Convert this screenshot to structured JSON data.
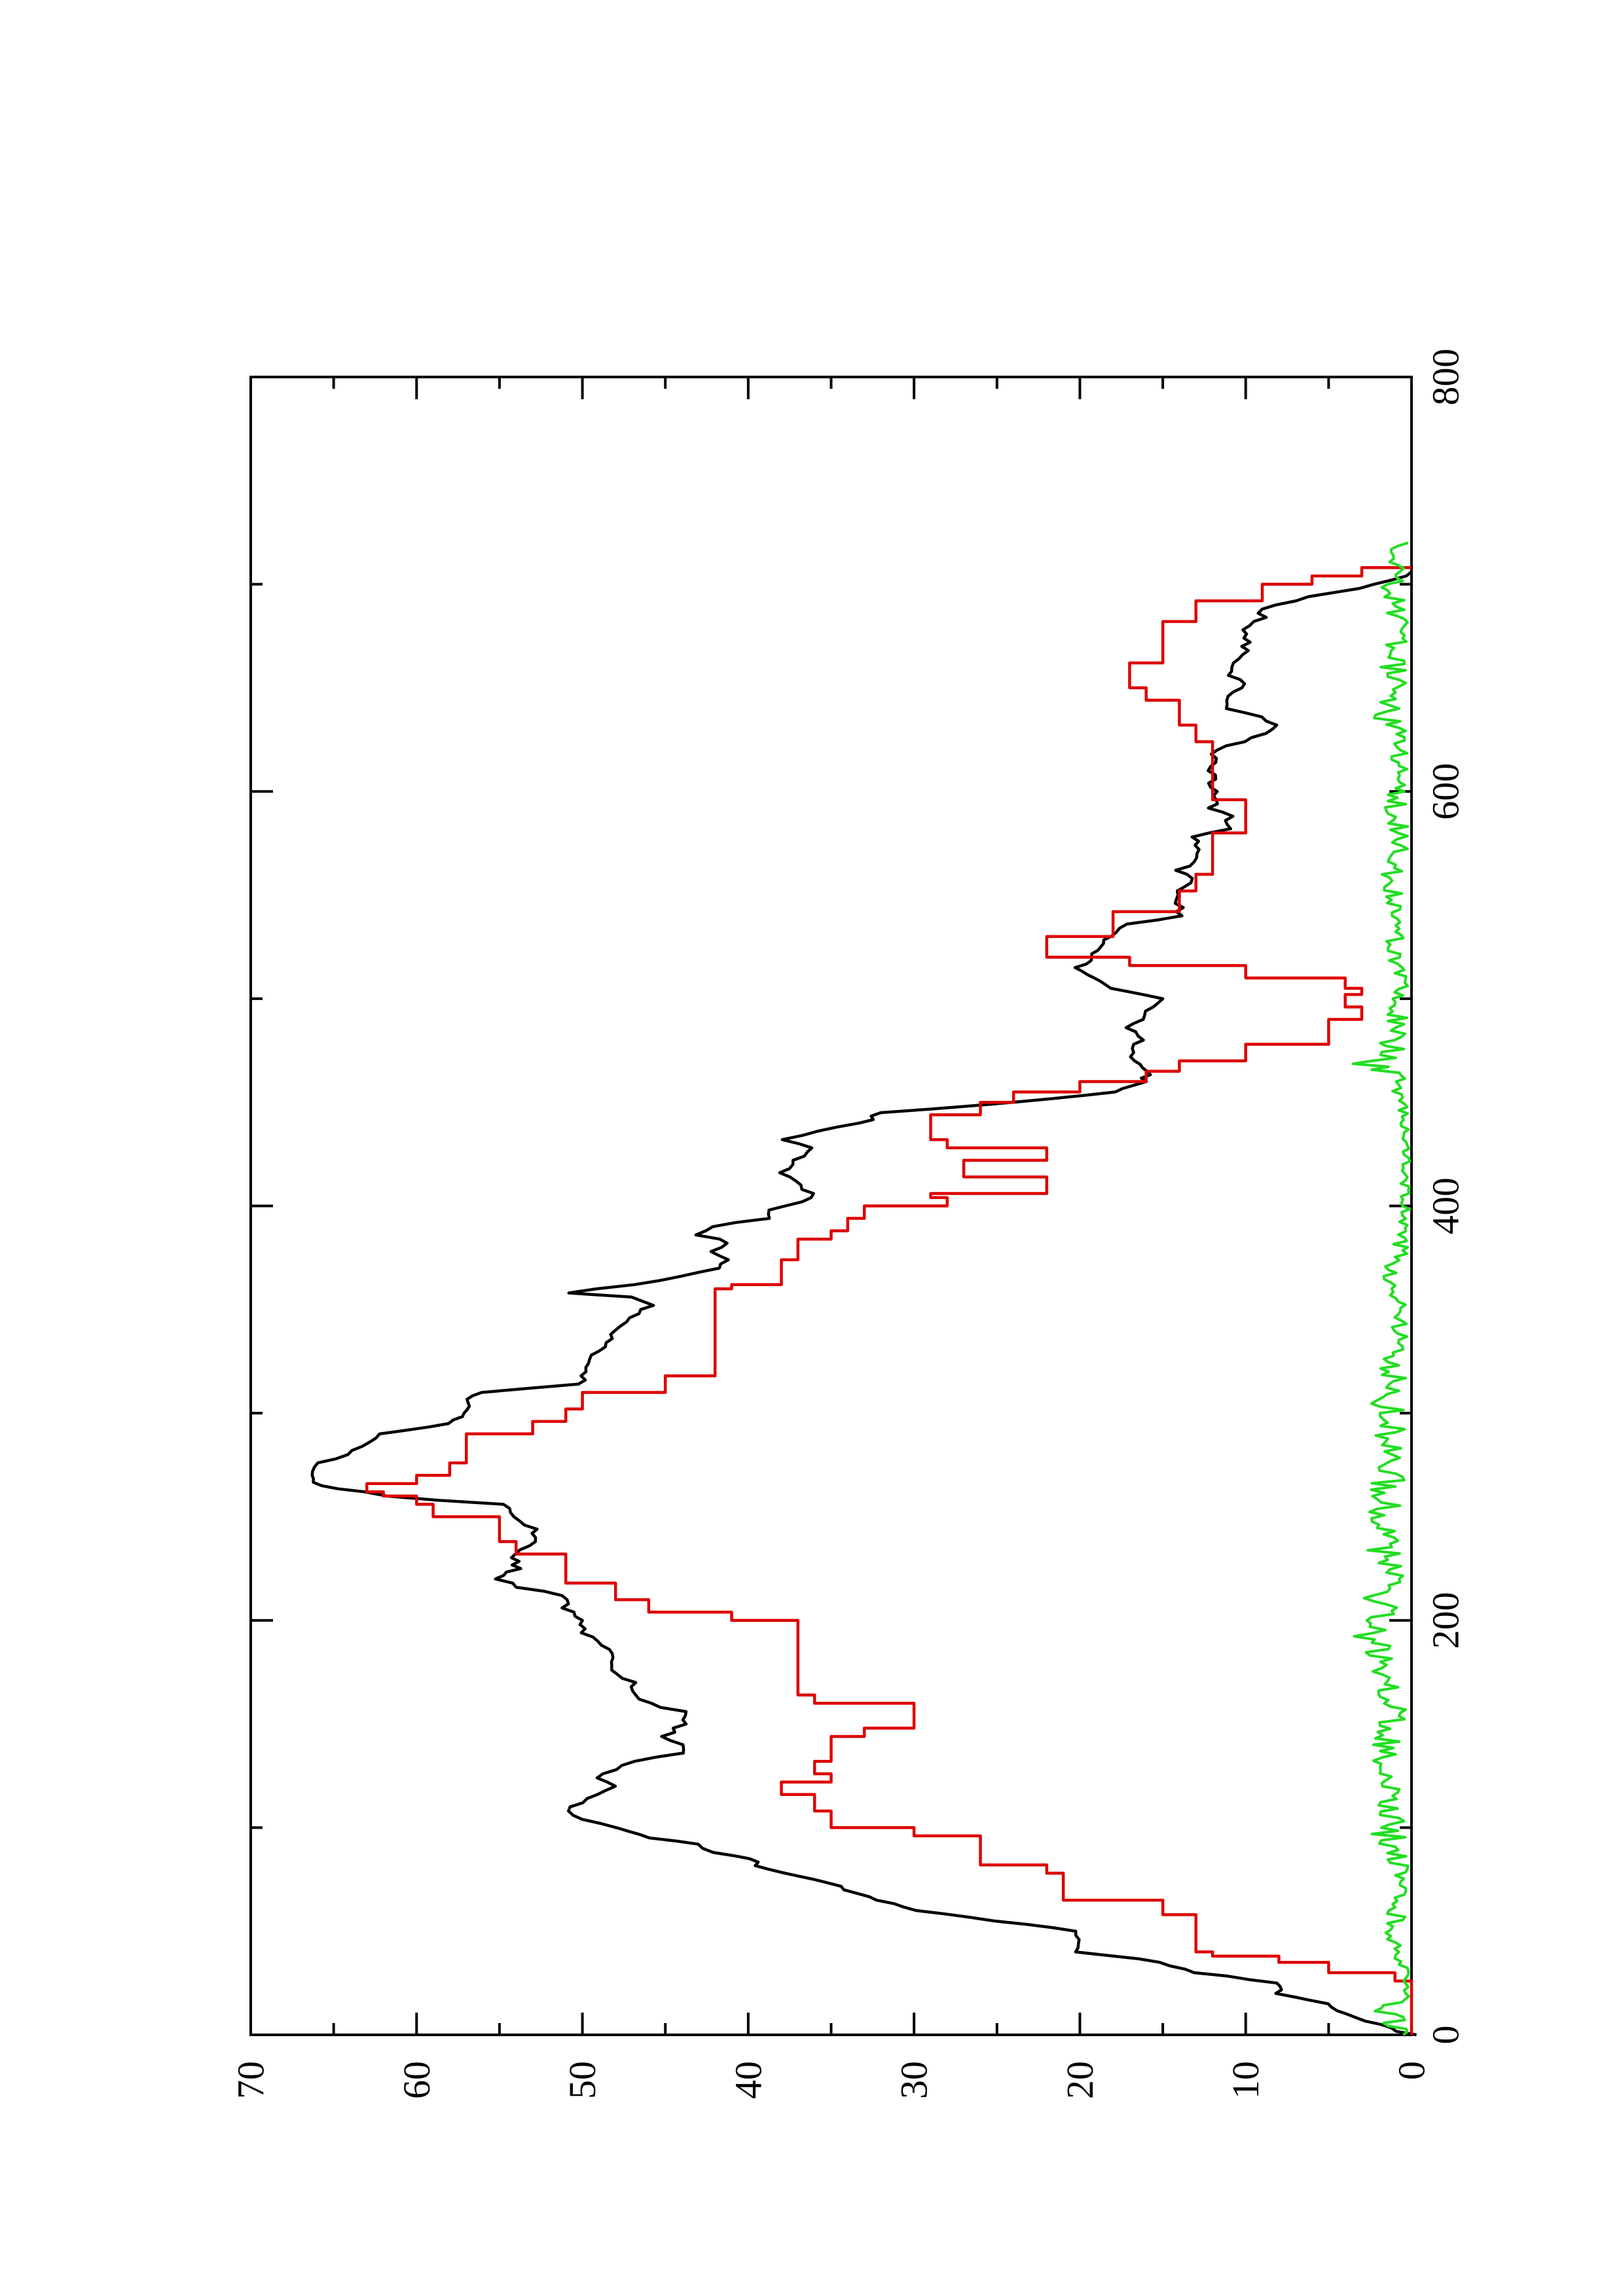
{
  "chart_data": {
    "type": "line",
    "orientation": "rotated 90 degrees counter-clockwise",
    "title": "",
    "xlabel": "",
    "ylabel": "",
    "xlim": [
      0,
      800
    ],
    "ylim": [
      0,
      70
    ],
    "x_ticks": [
      0,
      200,
      400,
      600,
      800
    ],
    "x_minor_ticks": [
      100,
      300,
      500,
      700
    ],
    "y_ticks": [
      0,
      10,
      20,
      30,
      40,
      50,
      60,
      70
    ],
    "y_minor_ticks": [
      5,
      15,
      25,
      35,
      45,
      55,
      65
    ],
    "x_tick_labels": [
      "0",
      "200",
      "400",
      "600",
      "800"
    ],
    "y_tick_labels": [
      "0",
      "10",
      "20",
      "30",
      "40",
      "50",
      "60",
      "70"
    ],
    "grid": false,
    "legend": "none",
    "series": [
      {
        "color": "#000000",
        "style": "jagged",
        "points": [
          [
            0,
            0
          ],
          [
            5,
            2
          ],
          [
            10,
            4
          ],
          [
            15,
            5
          ],
          [
            20,
            8
          ],
          [
            25,
            8
          ],
          [
            30,
            13
          ],
          [
            35,
            15
          ],
          [
            40,
            20
          ],
          [
            50,
            20
          ],
          [
            55,
            25
          ],
          [
            60,
            30
          ],
          [
            65,
            32
          ],
          [
            70,
            34
          ],
          [
            75,
            36
          ],
          [
            80,
            39
          ],
          [
            85,
            40
          ],
          [
            88,
            42
          ],
          [
            92,
            43
          ],
          [
            95,
            46
          ],
          [
            100,
            48
          ],
          [
            104,
            50
          ],
          [
            108,
            51
          ],
          [
            112,
            50
          ],
          [
            116,
            49
          ],
          [
            120,
            48
          ],
          [
            124,
            49
          ],
          [
            128,
            48
          ],
          [
            132,
            47
          ],
          [
            136,
            44
          ],
          [
            140,
            44
          ],
          [
            144,
            45
          ],
          [
            150,
            44
          ],
          [
            156,
            44
          ],
          [
            160,
            46
          ],
          [
            164,
            47
          ],
          [
            170,
            47
          ],
          [
            176,
            48
          ],
          [
            182,
            48
          ],
          [
            188,
            49
          ],
          [
            194,
            50
          ],
          [
            200,
            50
          ],
          [
            206,
            51
          ],
          [
            212,
            51
          ],
          [
            216,
            54
          ],
          [
            220,
            55
          ],
          [
            225,
            54
          ],
          [
            232,
            54
          ],
          [
            238,
            53
          ],
          [
            244,
            53
          ],
          [
            250,
            54
          ],
          [
            256,
            55
          ],
          [
            260,
            62
          ],
          [
            262,
            63
          ],
          [
            265,
            66
          ],
          [
            270,
            66
          ],
          [
            276,
            66
          ],
          [
            280,
            64
          ],
          [
            286,
            63
          ],
          [
            290,
            62
          ],
          [
            295,
            58
          ],
          [
            300,
            57
          ],
          [
            305,
            57
          ],
          [
            310,
            56
          ],
          [
            314,
            50
          ],
          [
            320,
            50
          ],
          [
            330,
            49
          ],
          [
            340,
            48
          ],
          [
            346,
            47
          ],
          [
            352,
            46
          ],
          [
            356,
            47
          ],
          [
            358,
            51
          ],
          [
            362,
            47
          ],
          [
            366,
            44
          ],
          [
            370,
            42
          ],
          [
            374,
            41
          ],
          [
            378,
            42
          ],
          [
            382,
            41
          ],
          [
            386,
            43
          ],
          [
            390,
            42
          ],
          [
            394,
            39
          ],
          [
            398,
            39
          ],
          [
            402,
            37
          ],
          [
            406,
            36
          ],
          [
            410,
            37
          ],
          [
            416,
            38
          ],
          [
            422,
            37
          ],
          [
            428,
            36
          ],
          [
            432,
            38
          ],
          [
            436,
            36
          ],
          [
            440,
            33
          ],
          [
            445,
            32
          ],
          [
            450,
            24
          ],
          [
            455,
            18
          ],
          [
            460,
            16
          ],
          [
            465,
            16
          ],
          [
            470,
            17
          ],
          [
            476,
            17
          ],
          [
            480,
            16
          ],
          [
            486,
            17
          ],
          [
            490,
            16
          ],
          [
            494,
            16
          ],
          [
            500,
            15
          ],
          [
            505,
            18
          ],
          [
            510,
            19
          ],
          [
            515,
            20
          ],
          [
            520,
            19
          ],
          [
            525,
            19
          ],
          [
            530,
            18
          ],
          [
            536,
            17
          ],
          [
            540,
            14
          ],
          [
            546,
            14
          ],
          [
            552,
            14
          ],
          [
            558,
            13
          ],
          [
            562,
            14
          ],
          [
            566,
            13
          ],
          [
            572,
            13
          ],
          [
            578,
            13
          ],
          [
            582,
            11
          ],
          [
            588,
            11
          ],
          [
            592,
            12
          ],
          [
            598,
            12
          ],
          [
            604,
            12
          ],
          [
            612,
            12
          ],
          [
            620,
            12
          ],
          [
            624,
            10
          ],
          [
            628,
            9
          ],
          [
            632,
            8
          ],
          [
            636,
            9
          ],
          [
            640,
            11
          ],
          [
            644,
            11
          ],
          [
            648,
            11
          ],
          [
            652,
            10
          ],
          [
            656,
            11
          ],
          [
            660,
            11
          ],
          [
            666,
            10
          ],
          [
            672,
            10
          ],
          [
            678,
            10
          ],
          [
            684,
            9
          ],
          [
            688,
            9
          ],
          [
            690,
            8
          ],
          [
            694,
            6
          ],
          [
            698,
            3
          ],
          [
            702,
            1
          ],
          [
            706,
            0
          ]
        ]
      },
      {
        "color": "#dd0000",
        "style": "step",
        "points": [
          [
            0,
            0
          ],
          [
            25,
            0
          ],
          [
            26,
            1
          ],
          [
            30,
            5
          ],
          [
            35,
            8
          ],
          [
            38,
            12
          ],
          [
            40,
            13
          ],
          [
            58,
            15
          ],
          [
            65,
            21
          ],
          [
            78,
            22
          ],
          [
            82,
            26
          ],
          [
            96,
            30
          ],
          [
            100,
            35
          ],
          [
            108,
            36
          ],
          [
            112,
            36
          ],
          [
            116,
            38
          ],
          [
            122,
            35
          ],
          [
            126,
            36
          ],
          [
            132,
            35
          ],
          [
            144,
            33
          ],
          [
            148,
            30
          ],
          [
            160,
            36
          ],
          [
            164,
            37
          ],
          [
            200,
            41
          ],
          [
            204,
            46
          ],
          [
            210,
            48
          ],
          [
            218,
            51
          ],
          [
            222,
            51
          ],
          [
            226,
            51
          ],
          [
            232,
            54
          ],
          [
            238,
            55
          ],
          [
            244,
            55
          ],
          [
            250,
            59
          ],
          [
            256,
            60
          ],
          [
            260,
            62
          ],
          [
            262,
            63
          ],
          [
            266,
            60
          ],
          [
            270,
            58
          ],
          [
            276,
            57
          ],
          [
            280,
            57
          ],
          [
            290,
            53
          ],
          [
            296,
            51
          ],
          [
            302,
            50
          ],
          [
            310,
            45
          ],
          [
            318,
            42
          ],
          [
            360,
            41
          ],
          [
            362,
            38
          ],
          [
            374,
            37
          ],
          [
            384,
            35
          ],
          [
            388,
            34
          ],
          [
            394,
            33
          ],
          [
            400,
            28
          ],
          [
            404,
            29
          ],
          [
            406,
            22
          ],
          [
            412,
            22
          ],
          [
            414,
            27
          ],
          [
            420,
            27
          ],
          [
            422,
            22
          ],
          [
            426,
            22
          ],
          [
            428,
            28
          ],
          [
            432,
            29
          ],
          [
            440,
            29
          ],
          [
            444,
            26
          ],
          [
            450,
            24
          ],
          [
            455,
            20
          ],
          [
            460,
            16
          ],
          [
            465,
            14
          ],
          [
            470,
            10
          ],
          [
            478,
            5
          ],
          [
            484,
            5
          ],
          [
            490,
            3
          ],
          [
            496,
            4
          ],
          [
            502,
            3
          ],
          [
            505,
            4
          ],
          [
            510,
            10
          ],
          [
            516,
            17
          ],
          [
            520,
            22
          ],
          [
            524,
            22
          ],
          [
            530,
            18
          ],
          [
            542,
            14
          ],
          [
            546,
            14
          ],
          [
            552,
            13
          ],
          [
            560,
            12
          ],
          [
            570,
            12
          ],
          [
            580,
            10
          ],
          [
            588,
            10
          ],
          [
            596,
            12
          ],
          [
            624,
            13
          ],
          [
            632,
            14
          ],
          [
            644,
            16
          ],
          [
            650,
            17
          ],
          [
            656,
            17
          ],
          [
            662,
            15
          ],
          [
            676,
            15
          ],
          [
            682,
            13
          ],
          [
            688,
            13
          ],
          [
            692,
            9
          ],
          [
            696,
            9
          ],
          [
            700,
            6
          ],
          [
            704,
            3
          ],
          [
            708,
            0
          ]
        ]
      },
      {
        "color": "#22dd22",
        "style": "noise",
        "approx_range": [
          0,
          3
        ],
        "x_extent": [
          0,
          720
        ],
        "note": "fluctuating baseline series near zero",
        "points": [
          [
            0,
            0.5
          ],
          [
            10,
            2
          ],
          [
            20,
            0.5
          ],
          [
            40,
            1
          ],
          [
            60,
            1.5
          ],
          [
            80,
            1
          ],
          [
            100,
            2
          ],
          [
            120,
            1.5
          ],
          [
            140,
            2
          ],
          [
            160,
            1.5
          ],
          [
            180,
            2.5
          ],
          [
            200,
            3
          ],
          [
            220,
            2
          ],
          [
            240,
            2.5
          ],
          [
            260,
            2
          ],
          [
            280,
            1.5
          ],
          [
            300,
            2
          ],
          [
            320,
            1.5
          ],
          [
            340,
            1
          ],
          [
            360,
            1.5
          ],
          [
            380,
            1
          ],
          [
            400,
            0.5
          ],
          [
            420,
            0.5
          ],
          [
            440,
            0.5
          ],
          [
            460,
            1
          ],
          [
            470,
            3
          ],
          [
            480,
            1.5
          ],
          [
            500,
            1
          ],
          [
            520,
            1.5
          ],
          [
            540,
            1
          ],
          [
            560,
            1.5
          ],
          [
            580,
            1
          ],
          [
            600,
            1.5
          ],
          [
            620,
            1
          ],
          [
            640,
            2
          ],
          [
            660,
            1.5
          ],
          [
            680,
            1
          ],
          [
            700,
            1.5
          ],
          [
            720,
            1
          ]
        ]
      }
    ]
  }
}
